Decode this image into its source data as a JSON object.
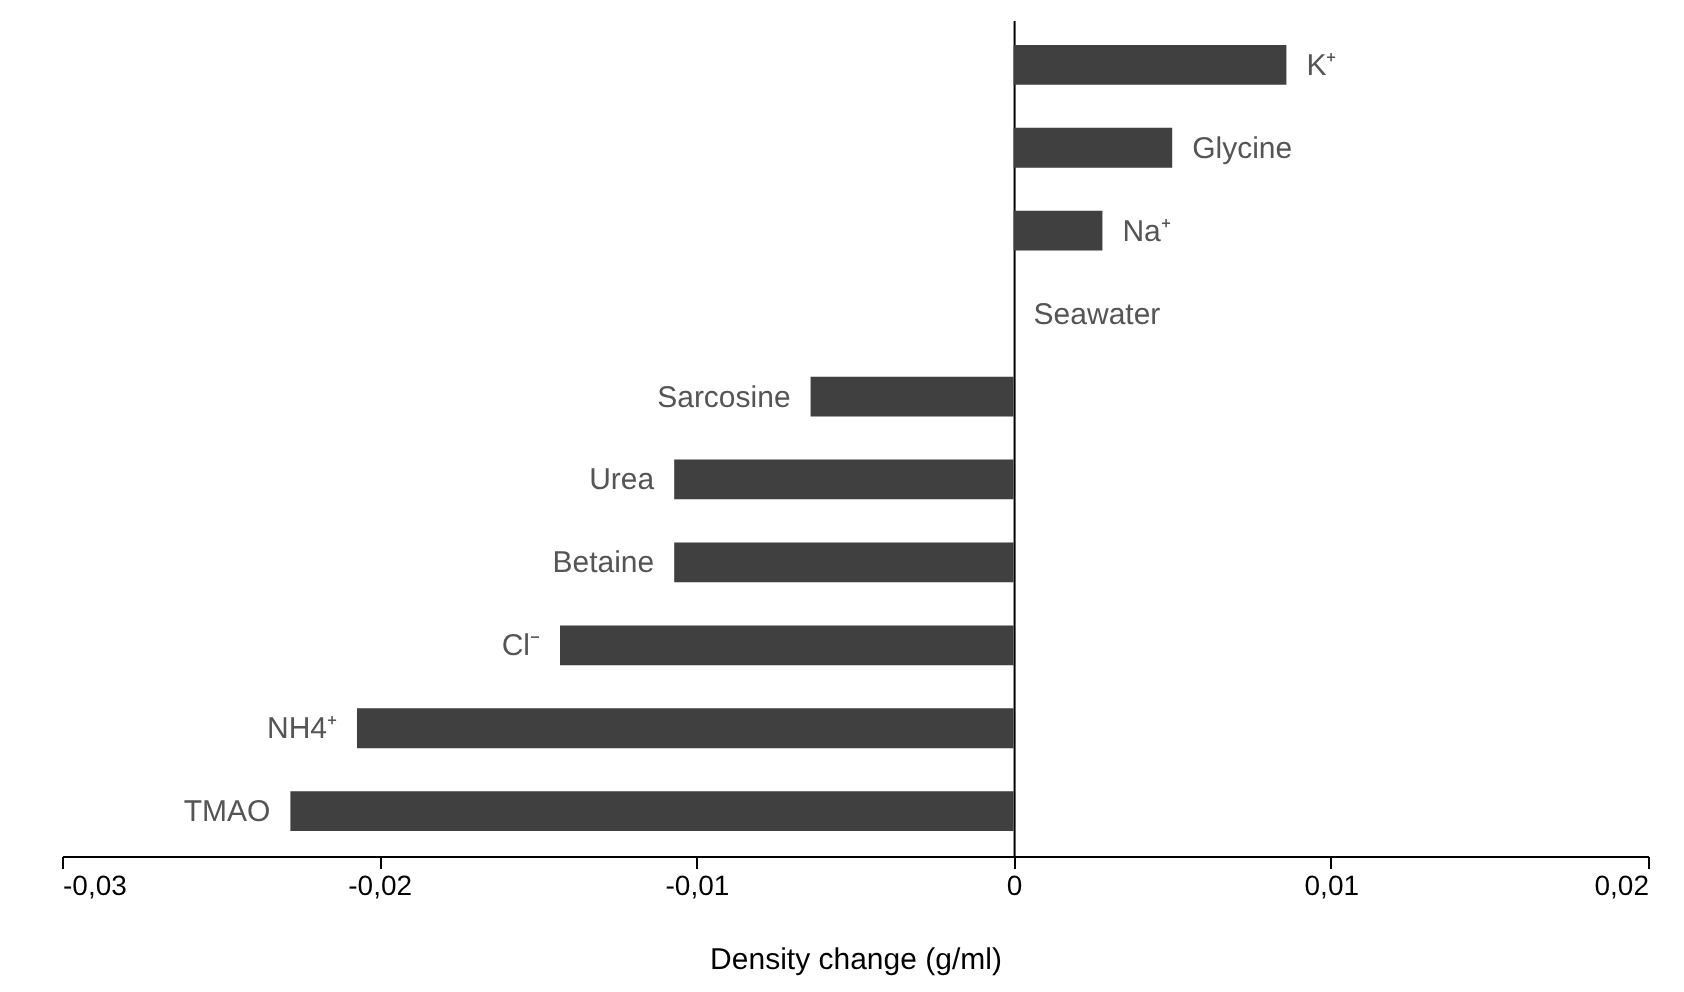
{
  "chart_data": {
    "type": "bar",
    "orientation": "horizontal",
    "xlabel": "Density change (g/ml)",
    "categories": [
      "K⁺",
      "Glycine",
      "Na⁺",
      "Seawater",
      "Sarcosine",
      "Urea",
      "Betaine",
      "Cl⁻",
      "NH4⁺",
      "TMAO"
    ],
    "values": [
      0.0086,
      0.005,
      0.0028,
      0,
      -0.0064,
      -0.0107,
      -0.0107,
      -0.0143,
      -0.0207,
      -0.0228
    ],
    "color": "#404040",
    "xlim": [
      -0.03,
      0.02
    ],
    "xticks": [
      {
        "value": -0.03,
        "label": "-0,03"
      },
      {
        "value": -0.02,
        "label": "-0,02"
      },
      {
        "value": -0.01,
        "label": "-0,01"
      },
      {
        "value": 0,
        "label": "0"
      },
      {
        "value": 0.01,
        "label": "0,01"
      },
      {
        "value": 0.02,
        "label": "0,02"
      }
    ]
  }
}
